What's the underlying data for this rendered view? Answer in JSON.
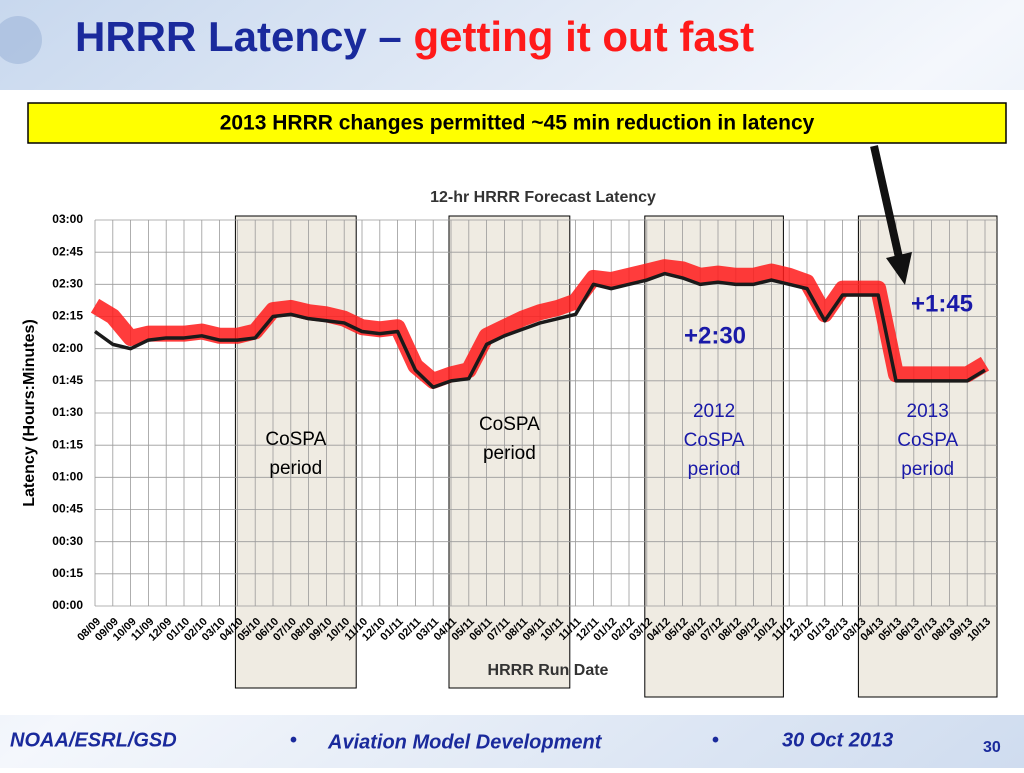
{
  "slide": {
    "title_blue": "HRRR Latency –",
    "title_red": "getting it out fast",
    "banner": "2013 HRRR changes permitted ~45 min reduction in latency",
    "annotation_2012": "+2:30",
    "annotation_2013": "+1:45",
    "footer_left": "NOAA/ESRL/GSD",
    "bullet": "•",
    "footer_center": "Aviation Model Development",
    "footer_date": "30 Oct 2013",
    "page_number": "30"
  },
  "chart_data": {
    "type": "line",
    "title": "12-hr HRRR Forecast Latency",
    "x_label": "HRRR Run Date",
    "y_label": "Latency (Hours:Minutes)",
    "categories": [
      "08/09",
      "09/09",
      "10/09",
      "11/09",
      "12/09",
      "01/10",
      "02/10",
      "03/10",
      "04/10",
      "05/10",
      "06/10",
      "07/10",
      "08/10",
      "09/10",
      "10/10",
      "11/10",
      "12/10",
      "01/11",
      "02/11",
      "03/11",
      "04/11",
      "05/11",
      "06/11",
      "07/11",
      "08/11",
      "09/11",
      "10/11",
      "11/11",
      "12/11",
      "01/12",
      "02/12",
      "03/12",
      "04/12",
      "05/12",
      "06/12",
      "07/12",
      "08/12",
      "09/12",
      "10/12",
      "11/12",
      "12/12",
      "01/13",
      "02/13",
      "03/13",
      "04/13",
      "05/13",
      "06/13",
      "07/13",
      "08/13",
      "09/13",
      "10/13"
    ],
    "series": [
      {
        "color": "#ff1a1a",
        "values": [
          140,
          135,
          125,
          127,
          127,
          127,
          128,
          126,
          126,
          128,
          138,
          139,
          137,
          136,
          134,
          130,
          129,
          130,
          112,
          105,
          108,
          110,
          126,
          130,
          134,
          137,
          139,
          142,
          153,
          152,
          154,
          156,
          158,
          157,
          154,
          155,
          154,
          154,
          156,
          154,
          151,
          136,
          148,
          148,
          148,
          108,
          108,
          108,
          108,
          108,
          113
        ]
      },
      {
        "color": "#1a1a1a",
        "values": [
          128,
          122,
          120,
          124,
          125,
          125,
          126,
          124,
          124,
          125,
          135,
          136,
          134,
          133,
          132,
          128,
          127,
          128,
          110,
          102,
          105,
          106,
          122,
          126,
          129,
          132,
          134,
          136,
          150,
          148,
          150,
          152,
          155,
          153,
          150,
          151,
          150,
          150,
          152,
          150,
          148,
          133,
          145,
          145,
          145,
          105,
          105,
          105,
          105,
          105,
          110
        ]
      }
    ],
    "ylim": [
      0,
      180
    ],
    "yticks": [
      {
        "value": 0,
        "label": "00:00"
      },
      {
        "value": 15,
        "label": "00:15"
      },
      {
        "value": 30,
        "label": "00:30"
      },
      {
        "value": 45,
        "label": "00:45"
      },
      {
        "value": 60,
        "label": "01:00"
      },
      {
        "value": 75,
        "label": "01:15"
      },
      {
        "value": 90,
        "label": "01:30"
      },
      {
        "value": 105,
        "label": "01:45"
      },
      {
        "value": 120,
        "label": "02:00"
      },
      {
        "value": 135,
        "label": "02:15"
      },
      {
        "value": 150,
        "label": "02:30"
      },
      {
        "value": 165,
        "label": "02:45"
      },
      {
        "value": 180,
        "label": "03:00"
      }
    ],
    "grid": true,
    "periods": [
      {
        "lines": [
          "CoSPA",
          "period"
        ],
        "from": "04/10",
        "to": "10/10",
        "color": "#000000"
      },
      {
        "lines": [
          "CoSPA",
          "period"
        ],
        "from": "04/11",
        "to": "10/11",
        "color": "#000000"
      },
      {
        "lines": [
          "2012",
          "CoSPA",
          "period"
        ],
        "from": "03/12",
        "to": "10/12",
        "color": "#1a1aa8"
      },
      {
        "lines": [
          "2013",
          "CoSPA",
          "period"
        ],
        "from": "03/13",
        "to": "10/13",
        "color": "#1a1aa8"
      }
    ]
  }
}
